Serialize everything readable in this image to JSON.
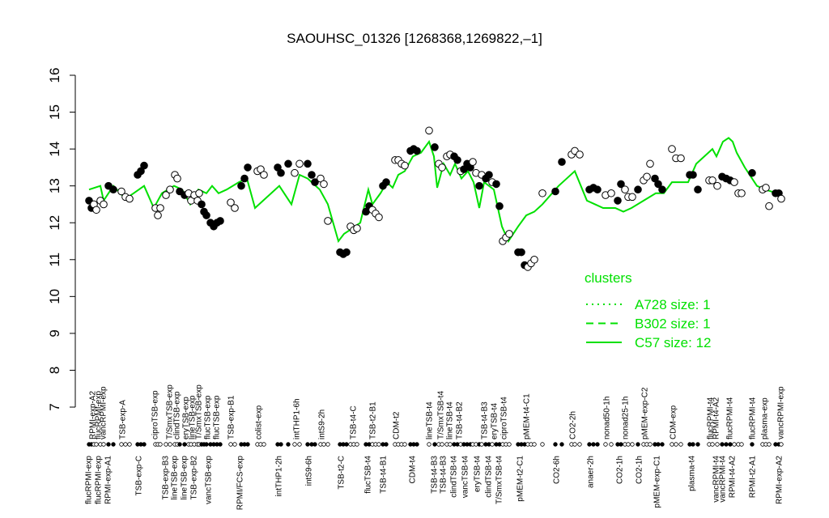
{
  "chart_data": {
    "type": "scatter",
    "title": "SAOUHSC_01326 [1268368,1269822,–1]",
    "xlim": [
      100,
      970
    ],
    "ylim": [
      7,
      16
    ],
    "yticks": [
      7,
      8,
      9,
      10,
      11,
      12,
      13,
      14,
      15,
      16
    ],
    "points": {
      "x": [
        110,
        113,
        116,
        119,
        124,
        128,
        134,
        140,
        150,
        155,
        160,
        170,
        174,
        178,
        192,
        195,
        198,
        205,
        210,
        216,
        219,
        222,
        228,
        233,
        236,
        240,
        244,
        246,
        249,
        252,
        255,
        260,
        264,
        268,
        272,
        285,
        290,
        298,
        302,
        306,
        318,
        322,
        326,
        343,
        347,
        356,
        364,
        370,
        380,
        385,
        389,
        396,
        400,
        405,
        420,
        424,
        428,
        433,
        437,
        441,
        452,
        456,
        460,
        464,
        468,
        473,
        477,
        488,
        492,
        496,
        500,
        507,
        511,
        515,
        530,
        537,
        542,
        546,
        552,
        556,
        561,
        565,
        569,
        573,
        577,
        581,
        584,
        588,
        592,
        595,
        600,
        604,
        608,
        613,
        617,
        621,
        625,
        629,
        640,
        644,
        648,
        652,
        656,
        660,
        670,
        686,
        694,
        706,
        710,
        716,
        728,
        733,
        738,
        748,
        755,
        763,
        767,
        772,
        776,
        781,
        788,
        795,
        799,
        803,
        809,
        813,
        818,
        830,
        835,
        841,
        852,
        856,
        862,
        876,
        880,
        886,
        892,
        897,
        902,
        907,
        912,
        916,
        929,
        942,
        946,
        950,
        958,
        962,
        965
      ],
      "y": [
        12.6,
        12.4,
        12.5,
        12.35,
        12.6,
        12.5,
        13.0,
        12.9,
        12.85,
        12.7,
        12.65,
        13.3,
        13.4,
        13.55,
        12.4,
        12.2,
        12.4,
        12.75,
        12.9,
        13.3,
        13.2,
        12.85,
        12.75,
        12.8,
        12.6,
        12.75,
        12.6,
        12.8,
        12.5,
        12.3,
        12.2,
        12.0,
        11.9,
        12.0,
        12.05,
        12.55,
        12.4,
        13.0,
        13.2,
        13.5,
        13.4,
        13.45,
        13.3,
        13.5,
        13.35,
        13.6,
        13.35,
        13.6,
        13.6,
        13.3,
        13.1,
        13.2,
        13.05,
        12.05,
        11.2,
        11.15,
        11.2,
        11.9,
        11.8,
        11.85,
        12.3,
        12.45,
        12.35,
        12.25,
        12.15,
        13.0,
        13.1,
        13.7,
        13.7,
        13.6,
        13.55,
        13.95,
        14.0,
        13.95,
        14.5,
        14.05,
        13.6,
        13.5,
        13.8,
        13.85,
        13.8,
        13.7,
        13.4,
        13.45,
        13.6,
        13.5,
        13.65,
        13.35,
        13.0,
        13.3,
        13.2,
        13.3,
        13.1,
        13.05,
        12.45,
        11.5,
        11.6,
        11.7,
        11.2,
        11.2,
        10.85,
        10.8,
        10.9,
        11.0,
        12.8,
        12.85,
        13.65,
        13.85,
        13.95,
        13.85,
        12.9,
        12.95,
        12.9,
        12.75,
        12.8,
        12.6,
        13.05,
        12.9,
        12.7,
        12.7,
        12.9,
        13.15,
        13.25,
        13.6,
        13.2,
        13.05,
        12.9,
        14.0,
        13.75,
        13.75,
        13.3,
        13.3,
        12.9,
        13.15,
        13.15,
        13.0,
        13.25,
        13.2,
        13.15,
        13.1,
        12.8,
        12.8,
        13.35,
        12.9,
        12.95,
        12.45,
        12.8,
        12.8,
        12.65
      ],
      "filled": [
        1,
        1,
        0,
        0,
        0,
        0,
        1,
        1,
        0,
        0,
        0,
        1,
        1,
        1,
        0,
        0,
        0,
        0,
        0,
        0,
        0,
        1,
        1,
        0,
        0,
        0,
        0,
        0,
        1,
        1,
        1,
        1,
        1,
        1,
        1,
        0,
        0,
        1,
        1,
        1,
        0,
        0,
        0,
        1,
        1,
        1,
        0,
        0,
        1,
        1,
        1,
        0,
        0,
        0,
        1,
        1,
        1,
        0,
        0,
        0,
        1,
        1,
        0,
        0,
        0,
        1,
        1,
        0,
        0,
        0,
        0,
        1,
        1,
        1,
        0,
        1,
        0,
        0,
        0,
        0,
        1,
        1,
        0,
        1,
        1,
        1,
        0,
        0,
        1,
        0,
        1,
        1,
        0,
        1,
        1,
        0,
        0,
        0,
        1,
        1,
        1,
        0,
        0,
        0,
        0,
        1,
        1,
        0,
        0,
        0,
        1,
        1,
        1,
        0,
        0,
        1,
        1,
        0,
        0,
        0,
        1,
        0,
        0,
        0,
        1,
        1,
        1,
        0,
        0,
        0,
        1,
        1,
        1,
        0,
        0,
        0,
        1,
        1,
        1,
        0,
        0,
        0,
        1,
        0,
        0,
        0,
        1,
        1,
        0
      ]
    },
    "series": [
      {
        "name": "A728 size: 1",
        "color": "#00e000",
        "dash": "dotted",
        "x": [],
        "values": []
      },
      {
        "name": "B302 size: 1",
        "color": "#00e000",
        "dash": "dashed",
        "x": [],
        "values": []
      },
      {
        "name": "C57 size: 12",
        "color": "#00e000",
        "dash": "solid",
        "x": [
          110,
          124,
          128,
          140,
          155,
          165,
          178,
          190,
          200,
          215,
          225,
          235,
          245,
          255,
          262,
          270,
          280,
          295,
          305,
          315,
          325,
          345,
          360,
          370,
          380,
          395,
          405,
          418,
          425,
          432,
          445,
          455,
          460,
          470,
          478,
          485,
          492,
          500,
          510,
          520,
          530,
          536,
          540,
          548,
          556,
          562,
          570,
          578,
          585,
          592,
          598,
          610,
          620,
          628,
          640,
          650,
          660,
          670,
          690,
          700,
          710,
          725,
          735,
          745,
          760,
          770,
          780,
          795,
          810,
          820,
          830,
          850,
          860,
          870,
          880,
          885,
          893,
          900,
          905,
          910,
          920,
          935,
          945,
          960
        ],
        "values": [
          12.9,
          13.0,
          12.6,
          13.0,
          12.65,
          12.8,
          13.0,
          12.4,
          12.8,
          13.0,
          12.9,
          12.5,
          12.9,
          12.8,
          13.0,
          12.8,
          12.9,
          13.1,
          13.2,
          12.4,
          12.6,
          13.0,
          12.5,
          13.3,
          13.2,
          12.9,
          12.5,
          11.5,
          11.7,
          11.8,
          12.0,
          12.9,
          12.5,
          12.8,
          13.1,
          12.95,
          13.3,
          13.4,
          13.8,
          13.9,
          14.2,
          13.8,
          12.95,
          13.6,
          13.3,
          13.6,
          13.2,
          13.4,
          13.1,
          12.4,
          13.1,
          12.9,
          11.9,
          11.5,
          11.9,
          12.2,
          12.3,
          12.5,
          13.0,
          13.2,
          13.4,
          12.6,
          12.5,
          12.4,
          12.4,
          12.3,
          12.4,
          12.6,
          12.8,
          12.8,
          13.1,
          13.1,
          13.6,
          13.8,
          14.0,
          13.8,
          14.2,
          14.3,
          14.2,
          13.9,
          13.5,
          13.0,
          12.9,
          12.8
        ]
      }
    ],
    "legend_title": "clusters",
    "top_labels": [
      {
        "text": "RPMI-exp-A2",
        "x": 115
      },
      {
        "text": "flucRPMI-exp",
        "x": 122
      },
      {
        "text": "vancRPMI-exp",
        "x": 128
      },
      {
        "text": "TSB-exp-A",
        "x": 152
      },
      {
        "text": "ciproTSB-exp",
        "x": 192
      },
      {
        "text": "T/SmxTSB-exp",
        "x": 210
      },
      {
        "text": "clindTSB-exp",
        "x": 219
      },
      {
        "text": "eryTSB-exp",
        "x": 230
      },
      {
        "text": "lineTSB-exp",
        "x": 238
      },
      {
        "text": "T/SmxTSB-exp",
        "x": 246
      },
      {
        "text": "flucTSB-exp",
        "x": 257
      },
      {
        "text": "flucTSB-exp",
        "x": 268
      },
      {
        "text": "TSB-exp-B1",
        "x": 286
      },
      {
        "text": "colist-exp",
        "x": 320
      },
      {
        "text": "intTHP1-6h",
        "x": 367
      },
      {
        "text": "intS9-2h",
        "x": 398
      },
      {
        "text": "TSB-t4-C",
        "x": 437
      },
      {
        "text": "TSB-t2-B1",
        "x": 461
      },
      {
        "text": "CDM-t2",
        "x": 490
      },
      {
        "text": "lineTSB-t4",
        "x": 531
      },
      {
        "text": "T/SmxTSB-t4",
        "x": 545
      },
      {
        "text": "lineTSB-t4",
        "x": 556
      },
      {
        "text": "TSB-t4-B2",
        "x": 568
      },
      {
        "text": "TSB-t4-B3",
        "x": 599
      },
      {
        "text": "eryTSB-t4",
        "x": 611
      },
      {
        "text": "ciproTSB-t4",
        "x": 623
      },
      {
        "text": "pMEM-t4-C1",
        "x": 651
      },
      {
        "text": "CO2-2h",
        "x": 708
      },
      {
        "text": "nonad50-1h",
        "x": 750
      },
      {
        "text": "nonad25-1h",
        "x": 773
      },
      {
        "text": "pMEM-exp-C2",
        "x": 797
      },
      {
        "text": "CDM-exp",
        "x": 832
      },
      {
        "text": "flucRPMI-t4",
        "x": 878
      },
      {
        "text": "RPMI-t4-A2",
        "x": 885
      },
      {
        "text": "flucRPMI-t4",
        "x": 902
      },
      {
        "text": "flucRPMI-t4",
        "x": 930
      },
      {
        "text": "plasma-exp",
        "x": 945
      },
      {
        "text": "vancRPMI-exp",
        "x": 965
      }
    ],
    "bottom_labels": [
      {
        "text": "flucRPMI-exp",
        "x": 110
      },
      {
        "text": "flucRPMI-exp",
        "x": 122
      },
      {
        "text": "RPMI-exp-A1",
        "x": 134
      },
      {
        "text": "TSB-exp-C",
        "x": 172
      },
      {
        "text": "TSB-exp-B3",
        "x": 205
      },
      {
        "text": "lineTSB-exp",
        "x": 216
      },
      {
        "text": "lineTSB-exp",
        "x": 228
      },
      {
        "text": "TSB-exp-B2",
        "x": 240
      },
      {
        "text": "vancTSB-exp",
        "x": 258
      },
      {
        "text": "RPMI/FCS-exp",
        "x": 297
      },
      {
        "text": "intTHP1-2h",
        "x": 345
      },
      {
        "text": "intS9-6h",
        "x": 382
      },
      {
        "text": "TSB-t2-C",
        "x": 422
      },
      {
        "text": "flucTSB-t4",
        "x": 455
      },
      {
        "text": "TSB-t4-B1",
        "x": 474
      },
      {
        "text": "CDM-t4",
        "x": 510
      },
      {
        "text": "TSB-t4-B3",
        "x": 537
      },
      {
        "text": "TSB-t4-B3",
        "x": 548
      },
      {
        "text": "clindTSB-t4",
        "x": 561
      },
      {
        "text": "vancTSB-t4",
        "x": 575
      },
      {
        "text": "eryTSB-t4",
        "x": 590
      },
      {
        "text": "clindTSB-t4",
        "x": 604
      },
      {
        "text": "T/SmxTSB-t4",
        "x": 617
      },
      {
        "text": "pMEM-t2-C1",
        "x": 643
      },
      {
        "text": "CO2-6h",
        "x": 688
      },
      {
        "text": "anaer-2h",
        "x": 730
      },
      {
        "text": "CO2-1h",
        "x": 766
      },
      {
        "text": "CO2-1h",
        "x": 790
      },
      {
        "text": "pMEM-exp-C1",
        "x": 812
      },
      {
        "text": "plasma-t4",
        "x": 855
      },
      {
        "text": "vancRPMI-t4",
        "x": 885
      },
      {
        "text": "vancRPMI-t4",
        "x": 893
      },
      {
        "text": "RPMI-t4-A2",
        "x": 905
      },
      {
        "text": "RPMI-t2-A1",
        "x": 930
      },
      {
        "text": "RPMI-exp-A2",
        "x": 963
      }
    ]
  }
}
